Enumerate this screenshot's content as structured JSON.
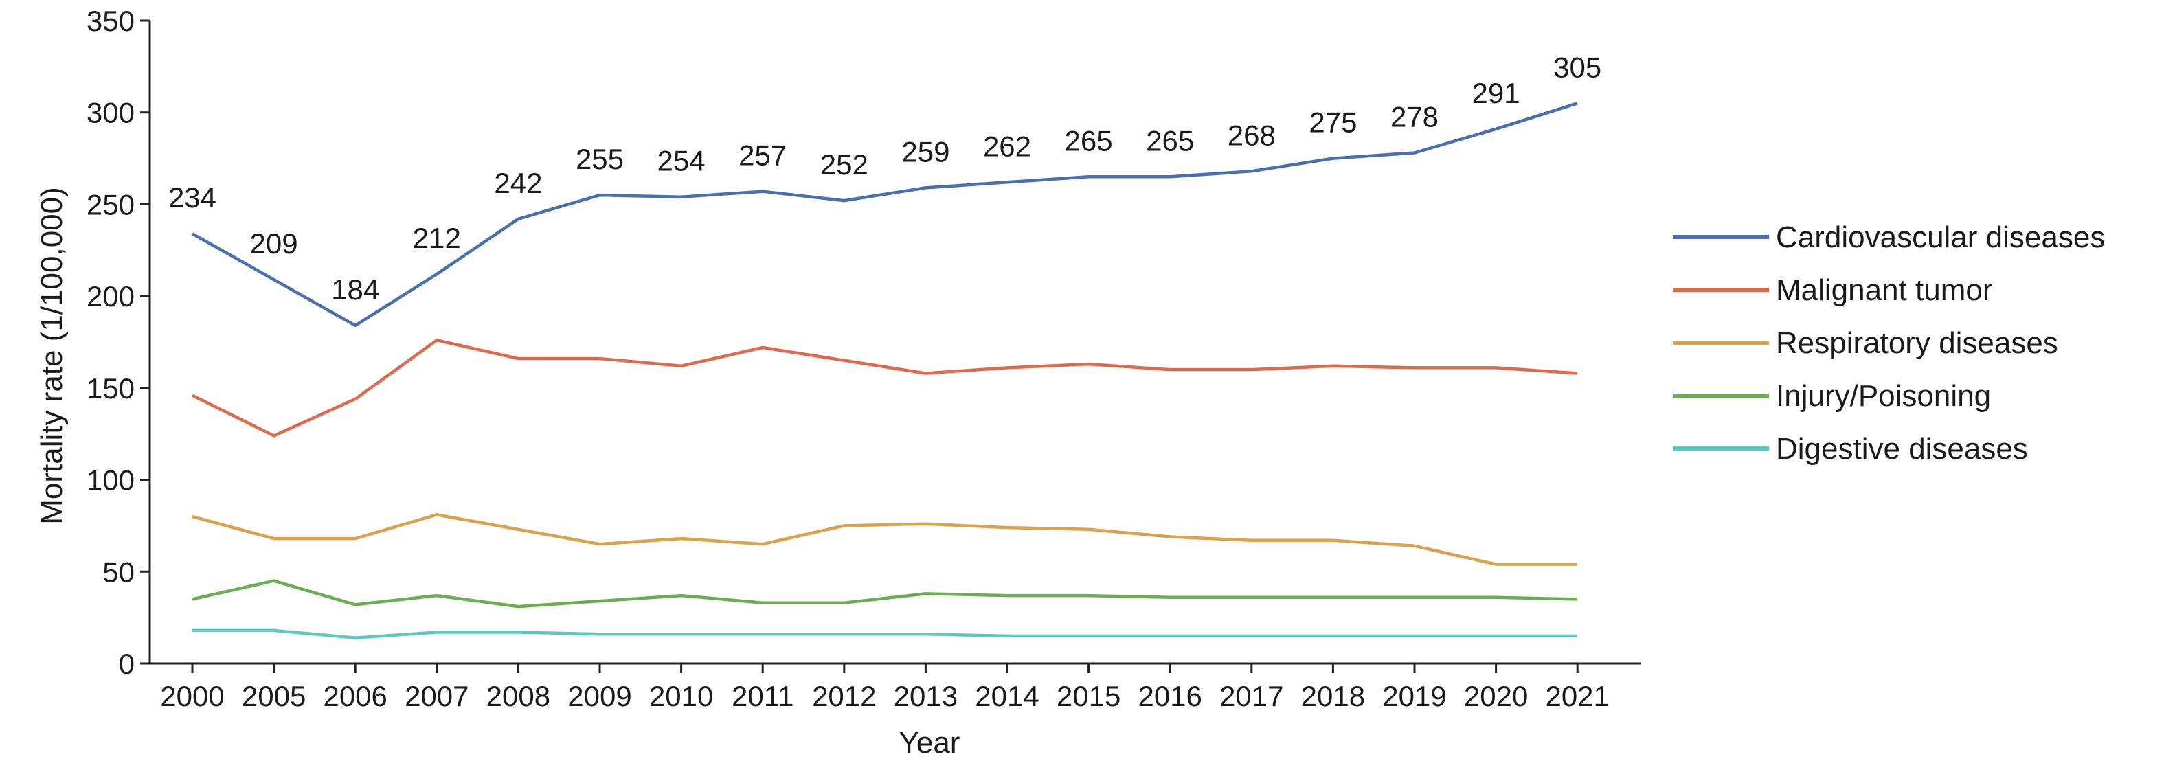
{
  "chart_data": {
    "type": "line",
    "title": "",
    "xlabel": "Year",
    "ylabel": "Mortality rate (1/100,000)",
    "ylim": [
      0,
      350
    ],
    "yticks": [
      "0",
      "50",
      "100",
      "150",
      "200",
      "250",
      "300",
      "350"
    ],
    "grid": false,
    "legend_position": "right",
    "categories": [
      "2000",
      "2005",
      "2006",
      "2007",
      "2008",
      "2009",
      "2010",
      "2011",
      "2012",
      "2013",
      "2014",
      "2015",
      "2016",
      "2017",
      "2018",
      "2019",
      "2020",
      "2021"
    ],
    "series": [
      {
        "name": "Cardiovascular diseases",
        "color": "#4a6fb0",
        "values": [
          234,
          209,
          184,
          212,
          242,
          255,
          254,
          257,
          252,
          259,
          262,
          265,
          265,
          268,
          275,
          278,
          291,
          305
        ],
        "labels": [
          "234",
          "209",
          "184",
          "212",
          "242",
          "255",
          "254",
          "257",
          "252",
          "259",
          "262",
          "265",
          "265",
          "268",
          "275",
          "278",
          "291",
          "305"
        ]
      },
      {
        "name": "Malignant tumor",
        "color": "#dd6a4c",
        "values": [
          146,
          124,
          144,
          176,
          166,
          166,
          162,
          172,
          165,
          158,
          161,
          163,
          160,
          160,
          162,
          161,
          161,
          158
        ]
      },
      {
        "name": "Respiratory diseases",
        "color": "#d9a24e",
        "values": [
          80,
          68,
          68,
          81,
          73,
          65,
          68,
          65,
          75,
          76,
          74,
          73,
          69,
          67,
          67,
          64,
          54,
          54
        ]
      },
      {
        "name": "Injury/Poisoning",
        "color": "#6aae52",
        "values": [
          35,
          45,
          32,
          37,
          31,
          34,
          37,
          33,
          33,
          38,
          37,
          37,
          36,
          36,
          36,
          36,
          36,
          35
        ]
      },
      {
        "name": "Digestive diseases",
        "color": "#5ec8c0",
        "values": [
          18,
          18,
          14,
          17,
          17,
          16,
          16,
          16,
          16,
          16,
          15,
          15,
          15,
          15,
          15,
          15,
          15,
          15
        ]
      }
    ]
  }
}
